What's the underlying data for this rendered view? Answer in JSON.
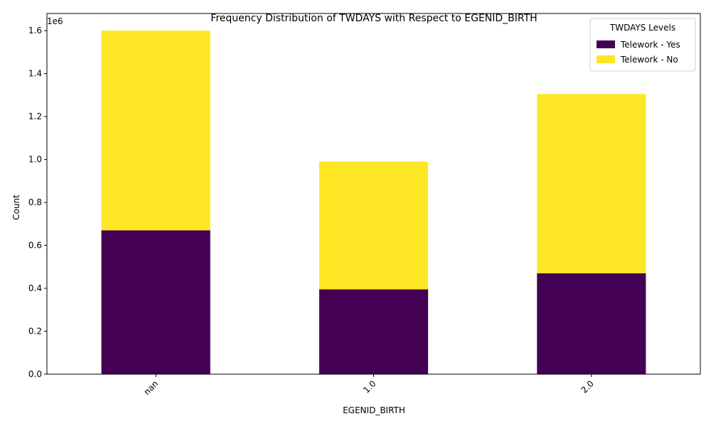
{
  "chart_data": {
    "type": "bar",
    "stacked": true,
    "title": "Frequency Distribution of TWDAYS with Respect to EGENID_BIRTH",
    "xlabel": "EGENID_BIRTH",
    "ylabel": "Count",
    "y_multiplier_label": "1e6",
    "categories": [
      "nan",
      "1.0",
      "2.0"
    ],
    "series": [
      {
        "name": "Telework - Yes",
        "color": "#440154",
        "values": [
          670000,
          395000,
          470000
        ]
      },
      {
        "name": "Telework - No",
        "color": "#fde725",
        "values": [
          930000,
          595000,
          835000
        ]
      }
    ],
    "ylim": [
      0,
      1680000
    ],
    "y_ticks": [
      0,
      200000,
      400000,
      600000,
      800000,
      1000000,
      1200000,
      1400000,
      1600000
    ],
    "y_tick_labels": [
      "0.0",
      "0.2",
      "0.4",
      "0.6",
      "0.8",
      "1.0",
      "1.2",
      "1.4",
      "1.6"
    ],
    "legend": {
      "title": "TWDAYS Levels",
      "placement": "top-right"
    },
    "grid": false
  }
}
